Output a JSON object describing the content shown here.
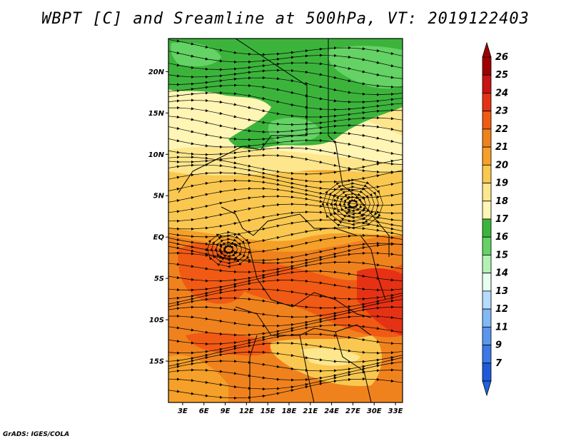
{
  "title": "WBPT [C] and Sreamline at 500hPa, VT: 2019122403",
  "footer": "GrADS: IGES/COLA",
  "map": {
    "lon_range": [
      1,
      34
    ],
    "lat_range": [
      -20,
      24
    ],
    "lat_ticks": [
      {
        "value": 20,
        "label": "20N"
      },
      {
        "value": 15,
        "label": "15N"
      },
      {
        "value": 10,
        "label": "10N"
      },
      {
        "value": 5,
        "label": "5N"
      },
      {
        "value": 0,
        "label": "EQ"
      },
      {
        "value": -5,
        "label": "5S"
      },
      {
        "value": -10,
        "label": "10S"
      },
      {
        "value": -15,
        "label": "15S"
      }
    ],
    "lon_ticks": [
      {
        "value": 3,
        "label": "3E"
      },
      {
        "value": 6,
        "label": "6E"
      },
      {
        "value": 9,
        "label": "9E"
      },
      {
        "value": 12,
        "label": "12E"
      },
      {
        "value": 15,
        "label": "15E"
      },
      {
        "value": 18,
        "label": "18E"
      },
      {
        "value": 21,
        "label": "21E"
      },
      {
        "value": 24,
        "label": "24E"
      },
      {
        "value": 27,
        "label": "27E"
      },
      {
        "value": 30,
        "label": "30E"
      },
      {
        "value": 33,
        "label": "33E"
      }
    ]
  },
  "colorbar": {
    "levels": [
      {
        "label": "26",
        "color": "#a00000"
      },
      {
        "label": "25",
        "color": "#c81414"
      },
      {
        "label": "24",
        "color": "#e63214"
      },
      {
        "label": "23",
        "color": "#f05a14"
      },
      {
        "label": "22",
        "color": "#f0821e"
      },
      {
        "label": "21",
        "color": "#f5a028"
      },
      {
        "label": "20",
        "color": "#fac850"
      },
      {
        "label": "19",
        "color": "#fde68c"
      },
      {
        "label": "18",
        "color": "#fff5b4"
      },
      {
        "label": "17",
        "color": "#3cb43c"
      },
      {
        "label": "16",
        "color": "#64d264"
      },
      {
        "label": "15",
        "color": "#b4f0b4"
      },
      {
        "label": "14",
        "color": "#e6fff0"
      },
      {
        "label": "13",
        "color": "#b4dcff"
      },
      {
        "label": "12",
        "color": "#82b9f5"
      },
      {
        "label": "11",
        "color": "#5a96ec"
      },
      {
        "label": "9",
        "color": "#3c78e6"
      },
      {
        "label": "7",
        "color": "#1e5adc"
      }
    ],
    "low_color": "#1e64dc",
    "high_color": "#a00000"
  },
  "colors": {
    "green_dark": "#3cb43c",
    "green_light": "#64d264",
    "cream": "#fff5b4",
    "yellow": "#fde68c",
    "light_orange": "#fac850",
    "orange": "#f5a028",
    "dark_orange": "#f0821e",
    "red_orange": "#f05a14",
    "red": "#e63214"
  }
}
